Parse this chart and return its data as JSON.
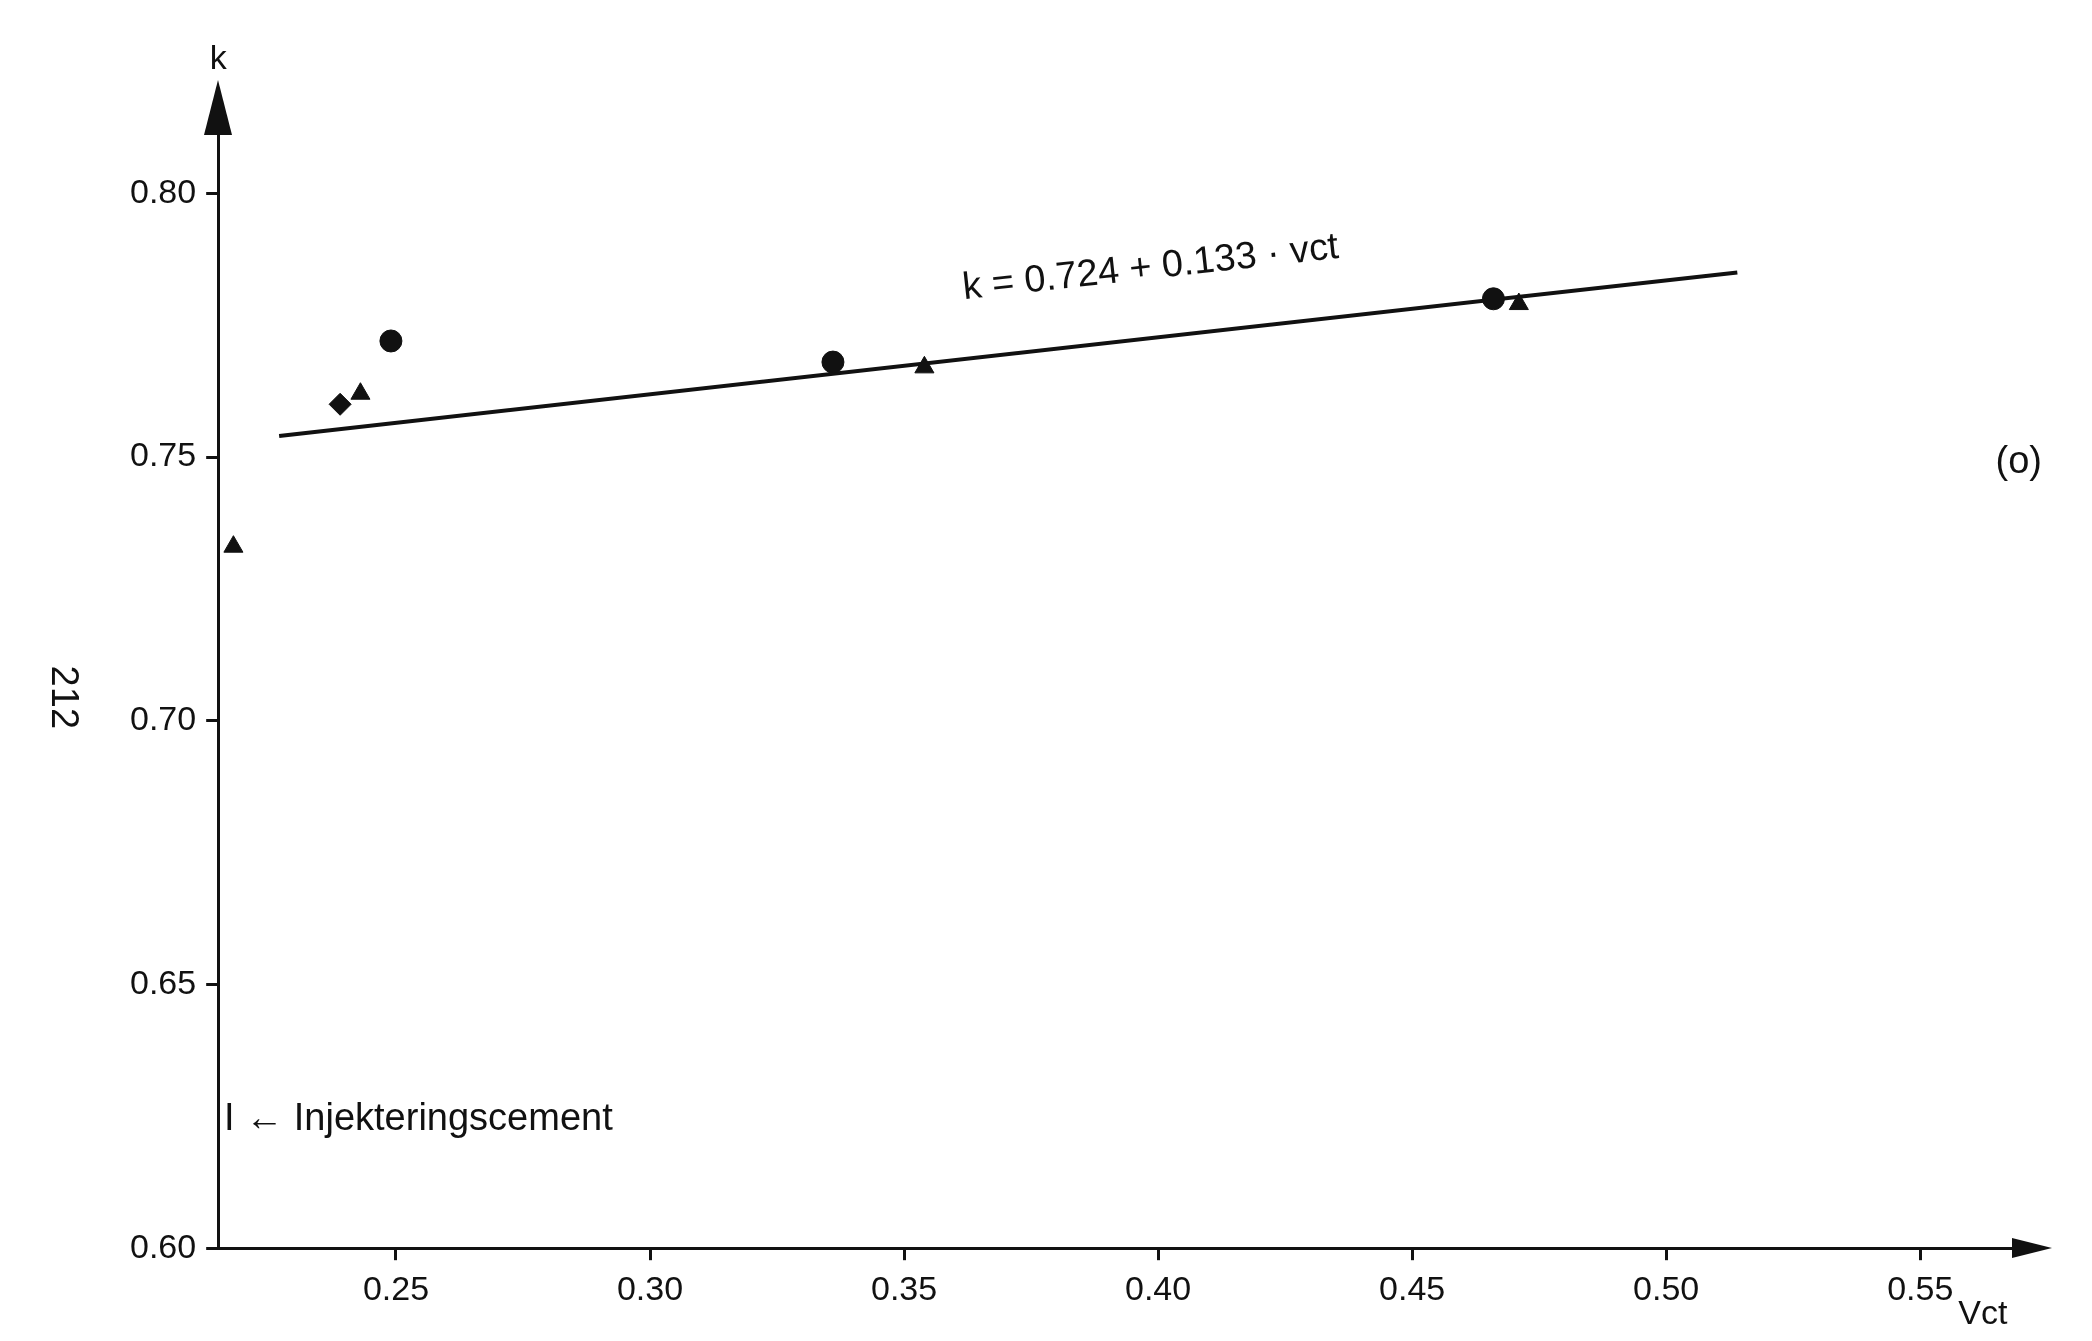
{
  "chart_data": {
    "type": "scatter",
    "xlabel": "Vct",
    "ylabel": "k",
    "xlim": [
      0.215,
      0.572
    ],
    "ylim": [
      0.6,
      0.812
    ],
    "xticks": [
      0.25,
      {
        "value": 0.3,
        "label": "0.30"
      },
      0.35,
      {
        "value": 0.4,
        "label": "0.40"
      },
      0.45,
      {
        "value": 0.5,
        "label": "0.50"
      },
      0.55
    ],
    "yticks": [
      {
        "value": 0.6,
        "label": "0.60"
      },
      0.65,
      {
        "value": 0.7,
        "label": "0.70"
      },
      0.75,
      {
        "value": 0.8,
        "label": "0.80"
      }
    ],
    "grid": false,
    "legend": false,
    "series": [
      {
        "type": "scatter",
        "marker": "circle",
        "color": "#111111",
        "x": [
          0.249,
          0.336,
          0.466
        ],
        "values": [
          0.772,
          0.768,
          0.78
        ]
      },
      {
        "type": "scatter",
        "marker": "triangle",
        "color": "#111111",
        "x": [
          0.243,
          0.354,
          0.471,
          0.218
        ],
        "values": [
          0.762,
          0.767,
          0.779,
          0.733
        ]
      },
      {
        "type": "scatter",
        "marker": "diamond",
        "color": "#111111",
        "x": [
          0.239
        ],
        "values": [
          0.76
        ]
      },
      {
        "type": "line",
        "marker": "none",
        "color": "#111111",
        "x": [
          0.227,
          0.514
        ],
        "values": [
          0.754,
          0.785
        ]
      }
    ],
    "annotations": [
      "k = 0.724 + 0.133 · vct",
      "(o)",
      "I ← Injekteringscement",
      "212"
    ]
  }
}
